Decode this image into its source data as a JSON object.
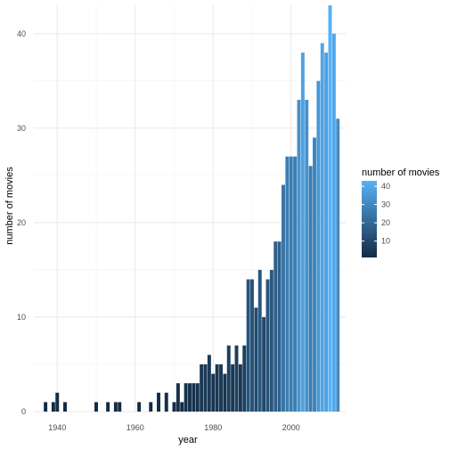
{
  "chart_data": {
    "type": "bar",
    "title": "",
    "xlabel": "year",
    "ylabel": "number of movies",
    "xlim": [
      1934,
      2014
    ],
    "ylim": [
      0,
      43
    ],
    "x_ticks": [
      1940,
      1960,
      1980,
      2000
    ],
    "y_ticks": [
      0,
      10,
      20,
      30,
      40
    ],
    "grid": true,
    "legend": {
      "title": "number of movies",
      "placement": "right",
      "ticks": [
        10,
        20,
        30,
        40
      ],
      "range": [
        1,
        43
      ],
      "color_low": "#132B43",
      "color_high": "#56B1F7"
    },
    "x": [
      1937,
      1939,
      1940,
      1942,
      1950,
      1953,
      1955,
      1956,
      1961,
      1964,
      1966,
      1968,
      1970,
      1971,
      1972,
      1973,
      1974,
      1975,
      1976,
      1977,
      1978,
      1979,
      1980,
      1981,
      1982,
      1983,
      1984,
      1985,
      1986,
      1987,
      1988,
      1989,
      1990,
      1991,
      1992,
      1993,
      1994,
      1995,
      1996,
      1997,
      1998,
      1999,
      2000,
      2001,
      2002,
      2003,
      2004,
      2005,
      2006,
      2007,
      2008,
      2009,
      2010,
      2011,
      2012
    ],
    "values": [
      1,
      1,
      2,
      1,
      1,
      1,
      1,
      1,
      1,
      1,
      2,
      2,
      1,
      3,
      1,
      3,
      3,
      3,
      3,
      5,
      5,
      6,
      4,
      5,
      5,
      4,
      7,
      5,
      7,
      5,
      7,
      14,
      14,
      11,
      15,
      10,
      14,
      15,
      18,
      18,
      24,
      27,
      27,
      27,
      33,
      38,
      33,
      26,
      29,
      35,
      39,
      38,
      43,
      40,
      31
    ]
  }
}
